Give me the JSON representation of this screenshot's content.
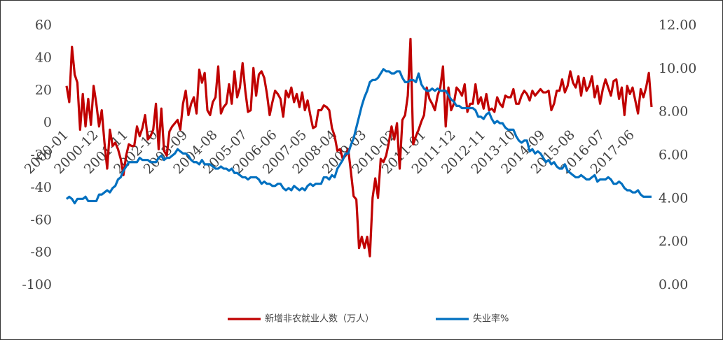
{
  "chart_data": {
    "type": "line",
    "categories": [
      "2000-01",
      null,
      null,
      null,
      null,
      null,
      null,
      null,
      null,
      null,
      null,
      "2000-12",
      null,
      null,
      null,
      null,
      null,
      null,
      null,
      null,
      null,
      null,
      "2001-11",
      null,
      null,
      null,
      null,
      null,
      null,
      null,
      null,
      null,
      null,
      "2002-10",
      null,
      null,
      null,
      null,
      null,
      null,
      null,
      null,
      null,
      null,
      "2003-09",
      null,
      null,
      null,
      null,
      null,
      null,
      null,
      null,
      null,
      null,
      "2004-08",
      null,
      null,
      null,
      null,
      null,
      null,
      null,
      null,
      null,
      null,
      "2005-07",
      null,
      null,
      null,
      null,
      null,
      null,
      null,
      null,
      null,
      null,
      "2006-06",
      null,
      null,
      null,
      null,
      null,
      null,
      null,
      null,
      null,
      null,
      "2007-05",
      null,
      null,
      null,
      null,
      null,
      null,
      null,
      null,
      null,
      null,
      "2008-04",
      null,
      null,
      null,
      null,
      null,
      null,
      null,
      null,
      null,
      null,
      "2009-03",
      null,
      null,
      null,
      null,
      null,
      null,
      null,
      null,
      null,
      null,
      "2010-02",
      null,
      null,
      null,
      null,
      null,
      null,
      null,
      null,
      null,
      null,
      "2011-01",
      null,
      null,
      null,
      null,
      null,
      null,
      null,
      null,
      null,
      null,
      "2011-12",
      null,
      null,
      null,
      null,
      null,
      null,
      null,
      null,
      null,
      null,
      "2012-11",
      null,
      null,
      null,
      null,
      null,
      null,
      null,
      null,
      null,
      null,
      "2013-10",
      null,
      null,
      null,
      null,
      null,
      null,
      null,
      null,
      null,
      null,
      "2014-09",
      null,
      null,
      null,
      null,
      null,
      null,
      null,
      null,
      null,
      null,
      "2015-08",
      null,
      null,
      null,
      null,
      null,
      null,
      null,
      null,
      null,
      null,
      "2016-07",
      null,
      null,
      null,
      null,
      null,
      null,
      null,
      null,
      null,
      null,
      "2017-06",
      null,
      null,
      null,
      null,
      null,
      null,
      null
    ],
    "series": [
      {
        "name": "新增非农就业人数（万人）",
        "color": "#c00000",
        "values": [
          23,
          13,
          47,
          30,
          25,
          -4,
          18,
          -2,
          15,
          -1,
          23,
          12,
          -2,
          8,
          -12,
          -28,
          -4,
          -14,
          -12,
          -16,
          -22,
          -32,
          -20,
          -13,
          -14,
          -14,
          -2,
          -8,
          -3,
          5,
          -10,
          -8,
          -4,
          12,
          -16,
          9,
          -17,
          -20,
          -5,
          -2,
          0,
          2,
          -4,
          12,
          20,
          5,
          12,
          16,
          6,
          33,
          25,
          31,
          8,
          5,
          13,
          16,
          35,
          6,
          10,
          12,
          24,
          12,
          32,
          16,
          22,
          37,
          20,
          7,
          8,
          34,
          17,
          30,
          32,
          28,
          18,
          5,
          13,
          20,
          18,
          15,
          4,
          20,
          16,
          22,
          13,
          18,
          10,
          19,
          8,
          14,
          5,
          -3,
          -2,
          8,
          8,
          11,
          10,
          8,
          -3,
          -8,
          -17,
          -16,
          -22,
          -20,
          -16,
          -30,
          -45,
          -47,
          -77,
          -70,
          -77,
          -70,
          -82,
          -46,
          -34,
          -46,
          -22,
          -24,
          -20,
          -12,
          -2,
          -10,
          0,
          -28,
          2,
          5,
          17,
          52,
          -13,
          -8,
          -4,
          1,
          5,
          22,
          15,
          12,
          8,
          17,
          22,
          35,
          -2,
          22,
          8,
          12,
          22,
          20,
          17,
          24,
          7,
          12,
          12,
          24,
          12,
          16,
          9,
          18,
          8,
          9,
          7,
          16,
          12,
          10,
          17,
          16,
          16,
          21,
          12,
          12,
          17,
          20,
          18,
          14,
          20,
          17,
          19,
          21,
          19,
          19,
          20,
          8,
          12,
          20,
          20,
          27,
          19,
          23,
          32,
          25,
          22,
          29,
          17,
          28,
          20,
          23,
          29,
          16,
          23,
          12,
          21,
          27,
          22,
          17,
          26,
          27,
          15,
          22,
          5,
          23,
          18,
          22,
          14,
          6,
          21,
          16,
          22,
          31,
          10
        ]
      },
      {
        "name": "失业率%",
        "color": "#0070c0",
        "axis": "y2",
        "values": [
          4.0,
          4.1,
          4.0,
          3.8,
          4.0,
          4.0,
          4.0,
          4.1,
          3.9,
          3.9,
          3.9,
          3.9,
          4.2,
          4.2,
          4.3,
          4.4,
          4.3,
          4.5,
          4.6,
          4.9,
          5.0,
          5.3,
          5.5,
          5.7,
          5.7,
          5.7,
          5.7,
          5.9,
          5.8,
          5.8,
          5.8,
          5.7,
          5.7,
          5.7,
          5.9,
          6.0,
          5.8,
          5.9,
          5.9,
          6.0,
          6.1,
          6.3,
          6.2,
          6.1,
          6.1,
          6.0,
          5.8,
          5.7,
          5.7,
          5.6,
          5.8,
          5.6,
          5.6,
          5.6,
          5.5,
          5.4,
          5.4,
          5.5,
          5.4,
          5.4,
          5.3,
          5.4,
          5.2,
          5.2,
          5.1,
          5.0,
          5.0,
          4.9,
          5.0,
          5.0,
          5.0,
          4.9,
          4.7,
          4.8,
          4.7,
          4.7,
          4.6,
          4.6,
          4.7,
          4.7,
          4.5,
          4.4,
          4.5,
          4.4,
          4.6,
          4.5,
          4.4,
          4.5,
          4.4,
          4.6,
          4.7,
          4.6,
          4.7,
          4.7,
          4.7,
          5.0,
          5.0,
          4.9,
          5.1,
          5.0,
          5.4,
          5.6,
          5.8,
          6.1,
          6.1,
          6.5,
          6.8,
          7.3,
          7.8,
          8.3,
          8.7,
          9.0,
          9.4,
          9.5,
          9.5,
          9.6,
          9.8,
          10.0,
          9.9,
          9.9,
          9.8,
          9.8,
          9.9,
          9.9,
          9.6,
          9.4,
          9.4,
          9.5,
          9.5,
          9.4,
          9.8,
          9.3,
          9.1,
          9.0,
          9.0,
          9.1,
          9.0,
          9.1,
          9.0,
          9.0,
          9.0,
          8.8,
          8.6,
          8.5,
          8.3,
          8.3,
          8.2,
          8.2,
          8.2,
          8.2,
          8.2,
          8.1,
          7.8,
          7.8,
          7.7,
          7.9,
          8.0,
          7.7,
          7.5,
          7.6,
          7.5,
          7.5,
          7.3,
          7.2,
          7.2,
          7.2,
          6.9,
          6.7,
          6.6,
          6.7,
          6.7,
          6.2,
          6.3,
          6.1,
          6.2,
          6.1,
          5.9,
          5.7,
          5.8,
          5.6,
          5.7,
          5.5,
          5.4,
          5.4,
          5.6,
          5.3,
          5.2,
          5.1,
          5.0,
          5.0,
          5.1,
          5.0,
          4.9,
          4.9,
          5.0,
          5.1,
          4.8,
          4.9,
          4.9,
          4.9,
          5.0,
          4.9,
          4.7,
          4.7,
          4.8,
          4.7,
          4.5,
          4.4,
          4.4,
          4.3,
          4.3,
          4.4,
          4.2,
          4.1,
          4.1,
          4.1,
          4.1
        ]
      }
    ],
    "ylim": [
      -100,
      60
    ],
    "yticks": [
      -100,
      -80,
      -60,
      -40,
      -20,
      0,
      20,
      40,
      60
    ],
    "y2lim": [
      0,
      12
    ],
    "y2ticks": [
      {
        "value": 0,
        "label": "0.00"
      },
      {
        "value": 2,
        "label": "2.00"
      },
      {
        "value": 4,
        "label": "4.00"
      },
      {
        "value": 6,
        "label": "6.00"
      },
      {
        "value": 8,
        "label": "8.00"
      },
      {
        "value": 10,
        "label": "10.00"
      },
      {
        "value": 12,
        "label": "12.00"
      }
    ],
    "grid": false,
    "legend": "bottom"
  }
}
